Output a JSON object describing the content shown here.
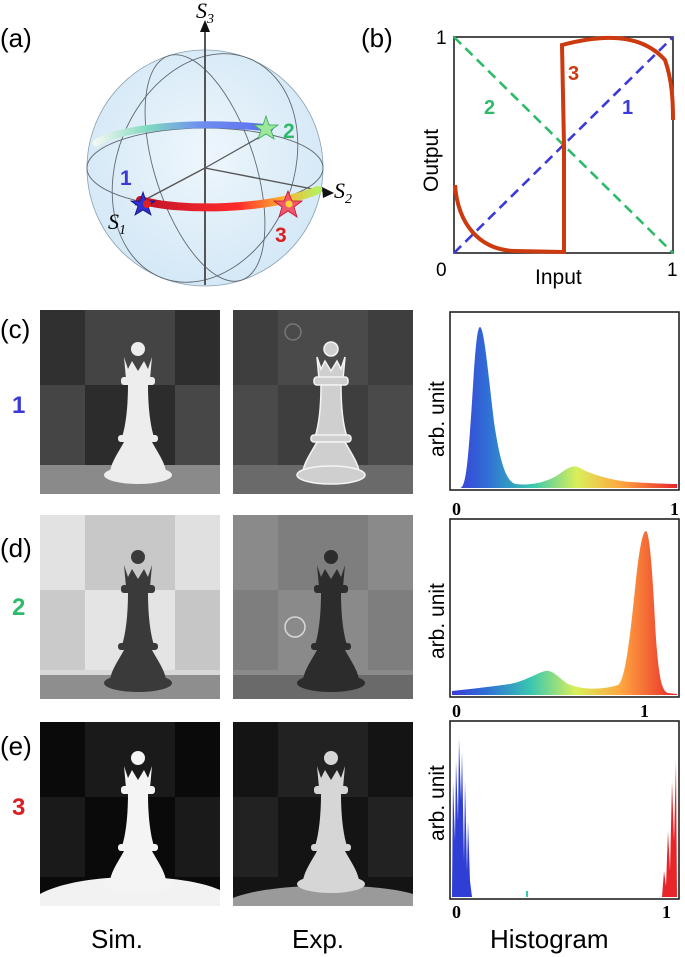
{
  "panels": {
    "a": "(a)",
    "b": "(b)",
    "c": "(c)",
    "d": "(d)",
    "e": "(e)"
  },
  "sphere": {
    "axis_s1": "S",
    "axis_s1_sub": "1",
    "axis_s2": "S",
    "axis_s2_sub": "2",
    "axis_s3": "S",
    "axis_s3_sub": "3",
    "markers": [
      {
        "label": "1",
        "color": "#3a3ad6"
      },
      {
        "label": "2",
        "color": "#2dbb6a"
      },
      {
        "label": "3",
        "color": "#d92020"
      }
    ]
  },
  "transfer": {
    "xlabel": "Input",
    "ylabel": "Output",
    "x_tick_min": "0",
    "x_tick_max": "1",
    "y_tick_max": "1",
    "curves": [
      {
        "label": "1",
        "color": "#3a3ad6",
        "style": "dashed"
      },
      {
        "label": "2",
        "color": "#2dbb6a",
        "style": "dashed"
      },
      {
        "label": "3",
        "color": "#cc3a10",
        "style": "solid"
      }
    ]
  },
  "rows": [
    {
      "label": "1",
      "color": "#3a3ad6",
      "ylabel": "arb. unit",
      "tick_min": "0",
      "tick_max": "1"
    },
    {
      "label": "2",
      "color": "#2dbb6a",
      "ylabel": "arb. unit",
      "tick_min": "0",
      "tick_max": "1"
    },
    {
      "label": "3",
      "color": "#d92020",
      "ylabel": "arb. unit",
      "tick_min": "0",
      "tick_max": "1"
    }
  ],
  "columns": {
    "sim": "Sim.",
    "exp": "Exp.",
    "hist": "Histogram"
  }
}
